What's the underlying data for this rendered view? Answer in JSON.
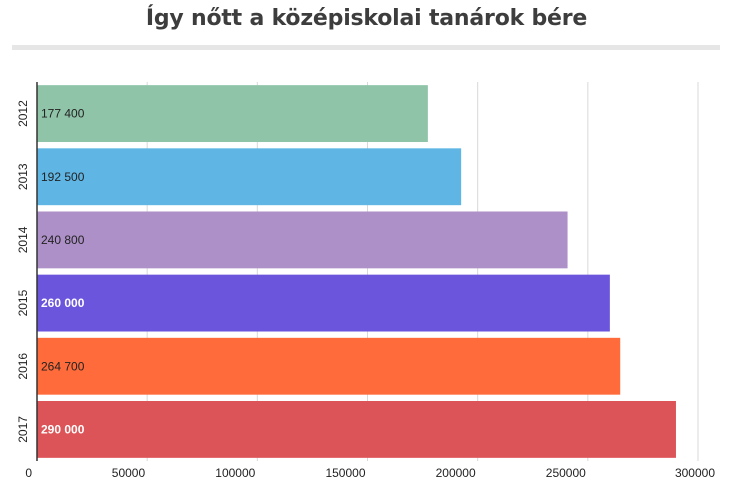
{
  "chart_data": {
    "type": "bar",
    "orientation": "horizontal",
    "title": "Így nőtt a középiskolai tanárok bére",
    "xlabel": "",
    "ylabel": "",
    "categories": [
      "2012",
      "2013",
      "2014",
      "2015",
      "2016",
      "2017"
    ],
    "values": [
      177400,
      192500,
      240800,
      260000,
      264700,
      290000
    ],
    "value_labels": [
      "177 400",
      "192 500",
      "240 800",
      "260 000",
      "264 700",
      "290 000"
    ],
    "colors": [
      "#8fc4a8",
      "#5fb6e5",
      "#ad90c7",
      "#6c55dd",
      "#ff6b3a",
      "#dc5457"
    ],
    "label_colors": [
      "#222222",
      "#222222",
      "#222222",
      "#ffffff",
      "#222222",
      "#ffffff"
    ],
    "label_bold": [
      false,
      false,
      false,
      true,
      false,
      true
    ],
    "xlim": [
      0,
      300000
    ],
    "xticks": [
      0,
      50000,
      100000,
      150000,
      200000,
      250000,
      300000
    ],
    "xtick_labels": [
      "0",
      "50000",
      "100000",
      "150000",
      "200000",
      "250000",
      "300000"
    ],
    "grid": true,
    "legend": "none"
  }
}
